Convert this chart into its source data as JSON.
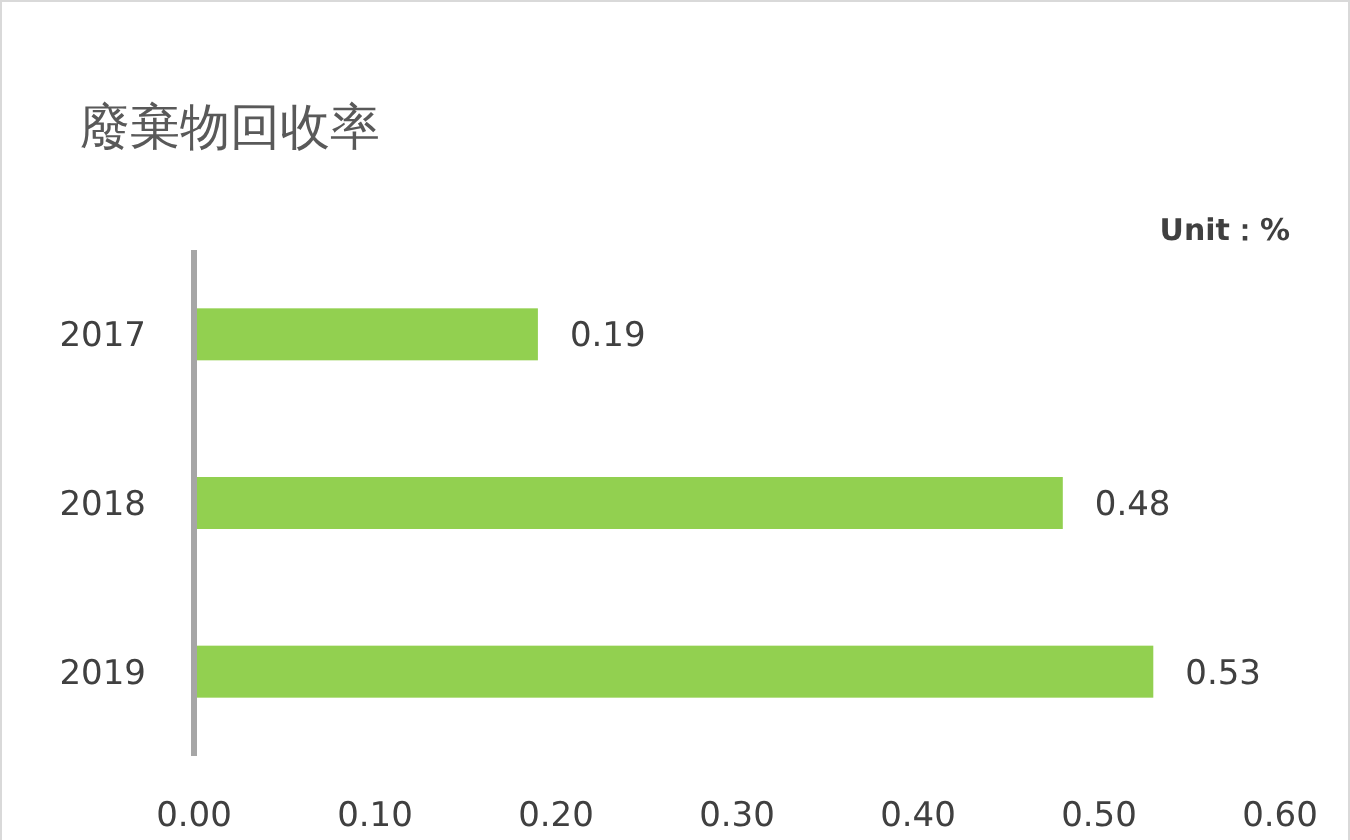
{
  "chart_data": {
    "type": "bar",
    "orientation": "horizontal",
    "title": "廢棄物回收率",
    "annotations": [
      "Unit：%"
    ],
    "categories": [
      "2017",
      "2018",
      "2019"
    ],
    "values": [
      0.19,
      0.48,
      0.53
    ],
    "color": "#92d050",
    "data_labels": true,
    "xlim": [
      0,
      0.6
    ],
    "xticks": [
      {
        "value": 0,
        "label": "0.00"
      },
      {
        "value": 0.1,
        "label": "0.10"
      },
      {
        "value": 0.2,
        "label": "0.20"
      },
      {
        "value": 0.3,
        "label": "0.30"
      },
      {
        "value": 0.4,
        "label": "0.40"
      },
      {
        "value": 0.5,
        "label": "0.50"
      },
      {
        "value": 0.6,
        "label": "0.60"
      }
    ],
    "grid": false
  }
}
